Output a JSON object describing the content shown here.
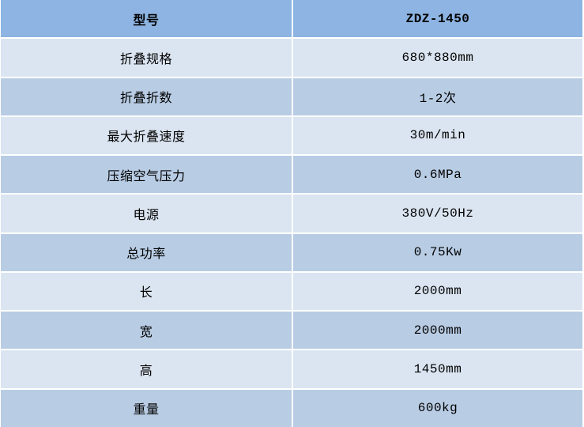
{
  "table": {
    "header": {
      "label": "型号",
      "value": "ZDZ-1450"
    },
    "rows": [
      {
        "label": "折叠规格",
        "value": "680*880mm"
      },
      {
        "label": "折叠折数",
        "value": "1-2次"
      },
      {
        "label": "最大折叠速度",
        "value": "30m/min"
      },
      {
        "label": "压缩空气压力",
        "value": "0.6MPa"
      },
      {
        "label": "电源",
        "value": "380V/50Hz"
      },
      {
        "label": "总功率",
        "value": "0.75Kw"
      },
      {
        "label": "长",
        "value": "2000mm"
      },
      {
        "label": "宽",
        "value": "2000mm"
      },
      {
        "label": "高",
        "value": "1450mm"
      },
      {
        "label": "重量",
        "value": "600kg"
      }
    ],
    "colors": {
      "header_bg": "#8DB4E2",
      "row_odd_bg": "#DBE5F1",
      "row_even_bg": "#B8CCE4",
      "separator": "#FFFFFF",
      "text": "#000000"
    }
  }
}
